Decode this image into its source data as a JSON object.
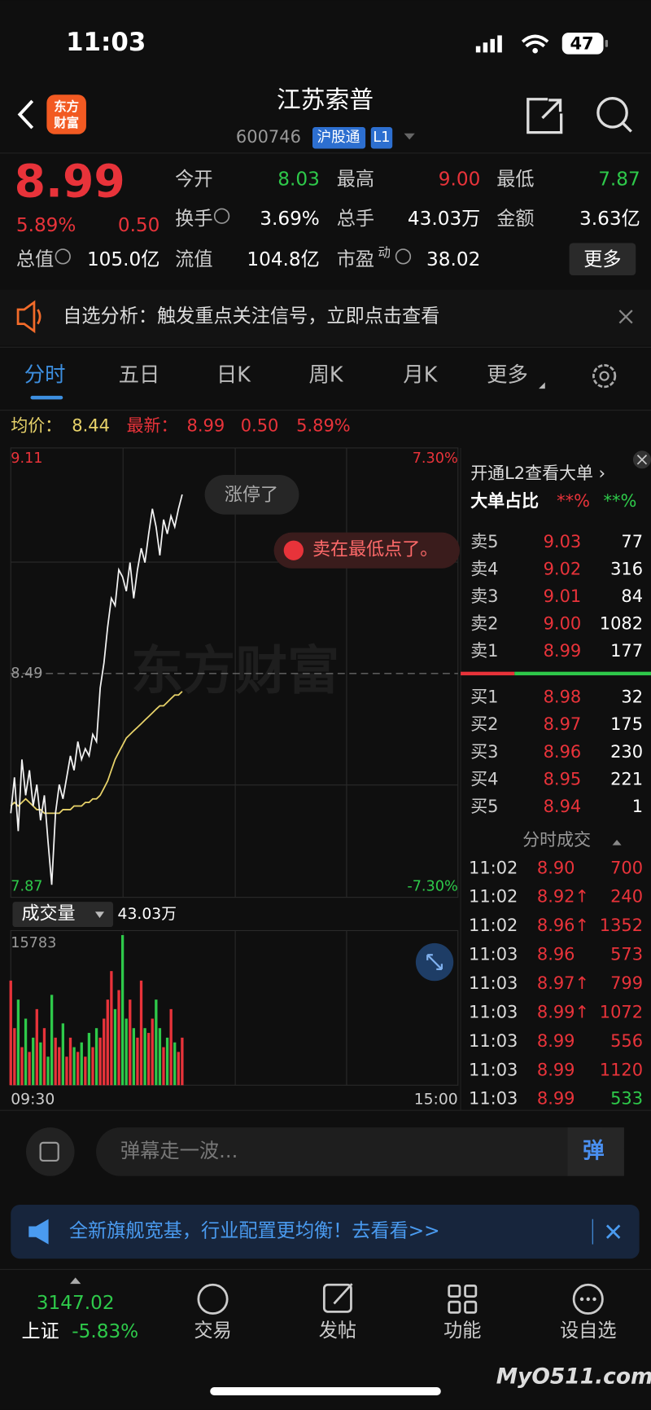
{
  "status": {
    "time": "11:03",
    "battery": "47"
  },
  "header": {
    "logo": [
      "东方",
      "财富"
    ],
    "title": "江苏索普",
    "code": "600746",
    "tags": [
      "沪股通",
      "L1"
    ]
  },
  "quote": {
    "price": "8.99",
    "change_pct": "5.89%",
    "change": "0.50",
    "more": "更多",
    "fields": [
      {
        "label": "今开",
        "value": "8.03",
        "color": "#2ec94a"
      },
      {
        "label": "最高",
        "value": "9.00",
        "color": "#e8333a"
      },
      {
        "label": "最低",
        "value": "7.87",
        "color": "#2ec94a"
      },
      {
        "label": "换手",
        "value": "3.69%",
        "info_icon": true
      },
      {
        "label": "总手",
        "value": "43.03万"
      },
      {
        "label": "金额",
        "value": "3.63亿"
      },
      {
        "label": "总值",
        "value": "105.0亿",
        "info_icon": true
      },
      {
        "label": "流值",
        "value": "104.8亿"
      },
      {
        "label": "市盈",
        "sup": "动",
        "value": "38.02",
        "info_icon": true
      }
    ]
  },
  "notice": "自选分析：触发重点关注信号，立即点击查看",
  "tabs": [
    "分时",
    "五日",
    "日K",
    "周K",
    "月K",
    "更多"
  ],
  "intraday": {
    "avg_label": "均价：",
    "avg": "8.44",
    "latest_label": "最新：",
    "latest": "8.99",
    "change": "0.50",
    "pct": "5.89%",
    "badge": "涨停了",
    "bubble": "卖在最低点了。",
    "watermark": "东方财富",
    "volume_label": "成交量",
    "volume_total": "43.03万",
    "time_labels": [
      "09:30",
      "15:00"
    ]
  },
  "chart_data": [
    {
      "type": "line",
      "ylim": [
        7.87,
        9.11
      ],
      "yticks": [
        7.87,
        8.49,
        9.11
      ],
      "y2lim": [
        -7.3,
        7.3
      ],
      "y2ticks": [
        {
          "value": -7.3,
          "label": "-7.30%"
        },
        {
          "value": 7.3,
          "label": "7.30%"
        }
      ],
      "series": [
        {
          "color": "#f2f2f2",
          "values": [
            8.1,
            8.2,
            8.05,
            8.25,
            8.15,
            8.22,
            8.12,
            8.18,
            8.08,
            8.15,
            8.02,
            7.9,
            8.1,
            8.18,
            8.14,
            8.2,
            8.26,
            8.22,
            8.3,
            8.25,
            8.28,
            8.26,
            8.32,
            8.3,
            8.45,
            8.52,
            8.62,
            8.7,
            8.68,
            8.78,
            8.76,
            8.72,
            8.8,
            8.7,
            8.78,
            8.84,
            8.8,
            8.88,
            8.95,
            8.9,
            8.82,
            8.92,
            8.88,
            8.93,
            8.9,
            8.95,
            8.99
          ]
        },
        {
          "color": "#e8d36a",
          "values": [
            8.12,
            8.13,
            8.12,
            8.13,
            8.14,
            8.13,
            8.12,
            8.11,
            8.11,
            8.1,
            8.1,
            8.1,
            8.1,
            8.1,
            8.11,
            8.11,
            8.11,
            8.12,
            8.12,
            8.12,
            8.13,
            8.13,
            8.14,
            8.14,
            8.15,
            8.17,
            8.19,
            8.22,
            8.25,
            8.27,
            8.29,
            8.31,
            8.32,
            8.33,
            8.34,
            8.35,
            8.36,
            8.37,
            8.38,
            8.39,
            8.4,
            8.4,
            8.41,
            8.42,
            8.43,
            8.43,
            8.44
          ]
        }
      ]
    },
    {
      "type": "bar",
      "ylim": [
        0,
        15783
      ],
      "yticks": [
        15783
      ],
      "up_color": "#e8333a",
      "down_color": "#2ec94a",
      "values": [
        11000,
        6000,
        9000,
        4000,
        7000,
        3500,
        5000,
        8000,
        4500,
        6000,
        3000,
        9500,
        5000,
        4000,
        6500,
        3000,
        5000,
        4000,
        3500,
        4500,
        3000,
        5500,
        4000,
        6000,
        5000,
        7000,
        9000,
        12000,
        8000,
        10000,
        15783,
        7000,
        9000,
        6000,
        5000,
        11000,
        6000,
        5500,
        7000,
        9000,
        6000,
        4000,
        5000,
        8000,
        4500,
        3500,
        5000
      ]
    }
  ],
  "order_book": {
    "l2": "开通L2查看大单 ›",
    "ratio_label": "大单占比",
    "ratio_buy": "**%",
    "ratio_sell": "**%",
    "asks": [
      [
        "卖5",
        "9.03",
        "77"
      ],
      [
        "卖4",
        "9.02",
        "316"
      ],
      [
        "卖3",
        "9.01",
        "84"
      ],
      [
        "卖2",
        "9.00",
        "1082"
      ],
      [
        "卖1",
        "8.99",
        "177"
      ]
    ],
    "bids": [
      [
        "买1",
        "8.98",
        "32"
      ],
      [
        "买2",
        "8.97",
        "175"
      ],
      [
        "买3",
        "8.96",
        "230"
      ],
      [
        "买4",
        "8.95",
        "221"
      ],
      [
        "买5",
        "8.94",
        "1"
      ]
    ],
    "ticks_title": "分时成交",
    "ticks": [
      {
        "time": "11:02",
        "price": "8.90",
        "qty": "700",
        "color": "#e8333a"
      },
      {
        "time": "11:02",
        "price": "8.92↑",
        "qty": "240",
        "color": "#e8333a"
      },
      {
        "time": "11:02",
        "price": "8.96↑",
        "qty": "1352",
        "color": "#e8333a"
      },
      {
        "time": "11:03",
        "price": "8.96",
        "qty": "573",
        "color": "#e8333a"
      },
      {
        "time": "11:03",
        "price": "8.97↑",
        "qty": "799",
        "color": "#e8333a"
      },
      {
        "time": "11:03",
        "price": "8.99↑",
        "qty": "1072",
        "color": "#e8333a"
      },
      {
        "time": "11:03",
        "price": "8.99",
        "qty": "556",
        "color": "#e8333a"
      },
      {
        "time": "11:03",
        "price": "8.99",
        "qty": "1120",
        "color": "#e8333a"
      },
      {
        "time": "11:03",
        "price": "8.99",
        "qty": "533",
        "color": "#2ec94a"
      }
    ]
  },
  "comment": {
    "placeholder": "弹幕走一波...",
    "button": "弹"
  },
  "banner": "全新旗舰宽基，行业配置更均衡！去看看>>",
  "footer": {
    "index_value": "3147.02",
    "index_name": "上证",
    "index_pct": "-5.83%",
    "nav": [
      "交易",
      "发帖",
      "功能",
      "设自选"
    ]
  },
  "watermark": "MyO511.com"
}
